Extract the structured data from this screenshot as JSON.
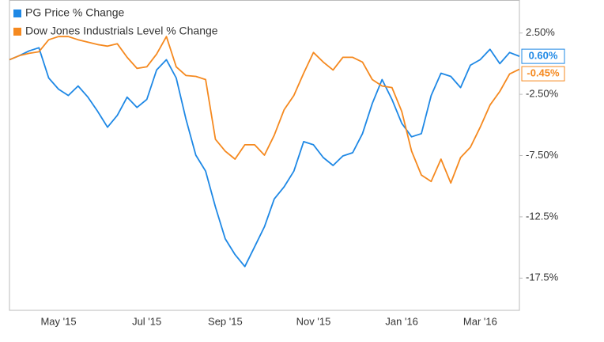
{
  "chart_data": {
    "type": "line",
    "categories": [
      null,
      null,
      null,
      null,
      null,
      "May '15",
      null,
      null,
      null,
      null,
      null,
      null,
      null,
      null,
      "Jul '15",
      null,
      null,
      null,
      null,
      null,
      null,
      null,
      "Sep '15",
      null,
      null,
      null,
      null,
      null,
      null,
      null,
      null,
      "Nov '15",
      null,
      null,
      null,
      null,
      null,
      null,
      null,
      null,
      "Jan '16",
      null,
      null,
      null,
      null,
      null,
      null,
      null,
      "Mar '16",
      null,
      null,
      null,
      null
    ],
    "series": [
      {
        "name": "PG Price % Change",
        "color": "#1e88e5",
        "values": [
          0.32,
          0.65,
          1.04,
          1.3,
          -1.17,
          -2.08,
          -2.6,
          -1.82,
          -2.73,
          -3.9,
          -5.19,
          -4.22,
          -2.73,
          -3.57,
          -2.92,
          -0.52,
          0.32,
          -1.17,
          -4.55,
          -7.47,
          -8.77,
          -11.69,
          -14.29,
          -15.58,
          -16.56,
          -14.94,
          -13.31,
          -11.04,
          -10.06,
          -8.77,
          -6.36,
          -6.62,
          -7.66,
          -8.31,
          -7.53,
          -7.27,
          -5.71,
          -3.25,
          -1.3,
          -2.92,
          -4.87,
          -5.97,
          -5.71,
          -2.6,
          -0.78,
          -1.04,
          -1.95,
          -0.13,
          0.32,
          1.17,
          0.0,
          0.91,
          0.6
        ],
        "value_labels": [
          null,
          null,
          null,
          null,
          null,
          null,
          null,
          null,
          null,
          null,
          null,
          null,
          null,
          null,
          null,
          null,
          null,
          null,
          null,
          null,
          null,
          null,
          null,
          null,
          null,
          null,
          null,
          null,
          null,
          null,
          null,
          null,
          null,
          null,
          null,
          null,
          null,
          null,
          null,
          null,
          null,
          null,
          null,
          null,
          null,
          null,
          null,
          null,
          null,
          null,
          null,
          null,
          "0.60%"
        ]
      },
      {
        "name": "Dow Jones Industrials Level % Change",
        "color": "#f5891f",
        "values": [
          0.32,
          0.65,
          0.84,
          0.97,
          1.95,
          2.21,
          2.21,
          1.95,
          1.75,
          1.56,
          1.43,
          1.62,
          0.52,
          -0.39,
          -0.26,
          0.78,
          2.21,
          -0.26,
          -0.97,
          -1.04,
          -1.3,
          -6.17,
          -7.14,
          -7.79,
          -6.62,
          -6.62,
          -7.47,
          -5.84,
          -3.77,
          -2.6,
          -0.78,
          0.91,
          0.13,
          -0.52,
          0.52,
          0.52,
          0.13,
          -1.3,
          -1.82,
          -1.95,
          -3.9,
          -7.14,
          -9.09,
          -9.61,
          -7.79,
          -9.74,
          -7.66,
          -6.82,
          -5.19,
          -3.38,
          -2.27,
          -0.84,
          -0.45
        ],
        "value_labels": [
          null,
          null,
          null,
          null,
          null,
          null,
          null,
          null,
          null,
          null,
          null,
          null,
          null,
          null,
          null,
          null,
          null,
          null,
          null,
          null,
          null,
          null,
          null,
          null,
          null,
          null,
          null,
          null,
          null,
          null,
          null,
          null,
          null,
          null,
          null,
          null,
          null,
          null,
          null,
          null,
          null,
          null,
          null,
          null,
          null,
          null,
          null,
          null,
          null,
          null,
          null,
          null,
          "-0.45%"
        ]
      }
    ],
    "ylim": [
      -20,
      5
    ],
    "yticks": [
      {
        "value": 2.5,
        "label": "2.50%"
      },
      {
        "value": -2.5,
        "label": "-2.50%"
      },
      {
        "value": -7.5,
        "label": "-7.50%"
      },
      {
        "value": -12.5,
        "label": "-12.5%"
      },
      {
        "value": -17.5,
        "label": "-17.5%"
      }
    ],
    "legend": "top-left"
  }
}
